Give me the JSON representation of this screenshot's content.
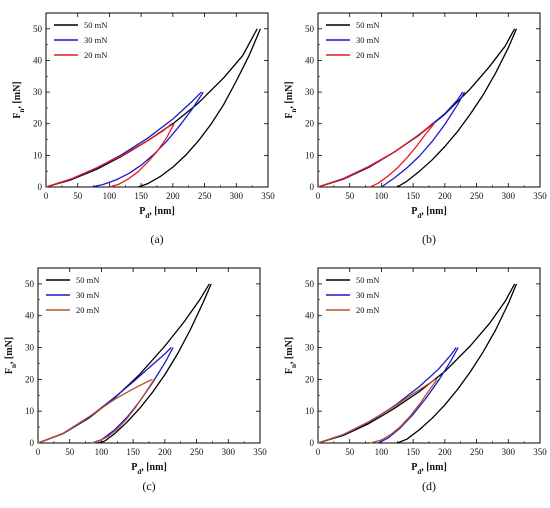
{
  "chart_data": [
    {
      "type": "line",
      "panel_label": "(a)",
      "xlabel": "P_d, [nm]",
      "ylabel": "F_n, [mN]",
      "xlim": [
        0,
        350
      ],
      "ylim": [
        0,
        55
      ],
      "xticks": [
        0,
        50,
        100,
        150,
        200,
        250,
        300,
        350
      ],
      "yticks": [
        0,
        10,
        20,
        30,
        40,
        50
      ],
      "legend_position": "top-left",
      "series": [
        {
          "name": "50 mN",
          "color": "#000000",
          "loading": {
            "x": [
              0,
              40,
              80,
              120,
              160,
              200,
              240,
              280,
              310,
              333
            ],
            "y": [
              0,
              2.3,
              5.6,
              9.8,
              14.6,
              20.0,
              26.5,
              34.5,
              41.5,
              50
            ]
          },
          "unloading": {
            "x": [
              338,
              320,
              300,
              280,
              260,
              240,
              220,
              200,
              180,
              160,
              145
            ],
            "y": [
              50,
              41.5,
              33.5,
              26,
              19.8,
              14.5,
              10,
              6.3,
              3.3,
              1.0,
              0
            ]
          }
        },
        {
          "name": "30 mN",
          "color": "#1a1acc",
          "loading": {
            "x": [
              0,
              40,
              80,
              120,
              160,
              200,
              230,
              245
            ],
            "y": [
              0,
              2.5,
              6.0,
              10.3,
              15.4,
              21.5,
              27.0,
              30
            ]
          },
          "unloading": {
            "x": [
              248,
              230,
              210,
              190,
              170,
              150,
              130,
              110,
              90,
              72
            ],
            "y": [
              30,
              24.5,
              19.2,
              14.4,
              10.3,
              6.9,
              4.2,
              2.2,
              0.8,
              0
            ]
          }
        },
        {
          "name": "20 mN",
          "color": "#e81c1c",
          "loading": {
            "x": [
              0,
              40,
              80,
              120,
              160,
              185,
              198
            ],
            "y": [
              0,
              2.6,
              6.1,
              10.0,
              14.6,
              17.8,
              20
            ]
          },
          "unloading": {
            "x": [
              202,
              190,
              175,
              160,
              145,
              130,
              115,
              100
            ],
            "y": [
              20,
              15.5,
              11.2,
              7.8,
              4.8,
              2.6,
              0.9,
              0
            ]
          }
        }
      ]
    },
    {
      "type": "line",
      "panel_label": "(b)",
      "xlabel": "P_d, [nm]",
      "ylabel": "F_n, [mN]",
      "xlim": [
        0,
        350
      ],
      "ylim": [
        0,
        55
      ],
      "xticks": [
        0,
        50,
        100,
        150,
        200,
        250,
        300,
        350
      ],
      "yticks": [
        0,
        10,
        20,
        30,
        40,
        50
      ],
      "legend_position": "top-left",
      "series": [
        {
          "name": "50 mN",
          "color": "#000000",
          "loading": {
            "x": [
              0,
              40,
              80,
              120,
              160,
              200,
              240,
              270,
              295,
              310
            ],
            "y": [
              0,
              2.5,
              6.2,
              11.0,
              16.5,
              23.0,
              31.0,
              38.0,
              44.5,
              50
            ]
          },
          "unloading": {
            "x": [
              313,
              300,
              280,
              260,
              240,
              220,
              200,
              180,
              160,
              140,
              125
            ],
            "y": [
              50,
              44,
              36,
              29,
              23,
              17.5,
              12.8,
              8.6,
              5.0,
              1.8,
              0
            ]
          }
        },
        {
          "name": "30 mN",
          "color": "#1a1acc",
          "loading": {
            "x": [
              0,
              40,
              80,
              120,
              160,
              200,
              220,
              228
            ],
            "y": [
              0,
              2.6,
              6.3,
              11.0,
              16.6,
              23.2,
              27.5,
              30
            ]
          },
          "unloading": {
            "x": [
              231,
              220,
              200,
              180,
              160,
              140,
              120,
              100
            ],
            "y": [
              30,
              26,
              19.8,
              14.4,
              9.8,
              6.0,
              2.8,
              0
            ]
          }
        },
        {
          "name": "20 mN",
          "color": "#e81c1c",
          "loading": {
            "x": [
              0,
              40,
              80,
              120,
              150,
              170,
              180
            ],
            "y": [
              0,
              2.7,
              6.5,
              11.0,
              15.2,
              18.2,
              20
            ]
          },
          "unloading": {
            "x": [
              183,
              170,
              155,
              140,
              125,
              110,
              95,
              82
            ],
            "y": [
              20,
              16.8,
              12.8,
              9.2,
              6.0,
              3.4,
              1.2,
              0
            ]
          }
        }
      ]
    },
    {
      "type": "line",
      "panel_label": "(c)",
      "xlabel": "P_d, [nm]",
      "ylabel": "F_n, [mN]",
      "xlim": [
        0,
        350
      ],
      "ylim": [
        0,
        55
      ],
      "xticks": [
        0,
        50,
        100,
        150,
        200,
        250,
        300,
        350
      ],
      "yticks": [
        0,
        10,
        20,
        30,
        40,
        50
      ],
      "legend_position": "top-left",
      "series": [
        {
          "name": "50 mN",
          "color": "#000000",
          "loading": {
            "x": [
              0,
              40,
              80,
              120,
              160,
              200,
              230,
              255,
              270
            ],
            "y": [
              0,
              3.0,
              7.8,
              14.0,
              21.5,
              30.5,
              38.0,
              45.0,
              50
            ]
          },
          "unloading": {
            "x": [
              273,
              260,
              240,
              220,
              200,
              180,
              160,
              140,
              120,
              105,
              95
            ],
            "y": [
              50,
              44,
              35.5,
              28,
              21.5,
              15.8,
              10.8,
              6.5,
              2.8,
              0.6,
              0
            ]
          }
        },
        {
          "name": "30 mN",
          "color": "#1a1acc",
          "loading": {
            "x": [
              0,
              40,
              80,
              120,
              150,
              180,
              200,
              210
            ],
            "y": [
              0,
              3.0,
              8.0,
              14.2,
              19.2,
              24.5,
              28.0,
              30
            ]
          },
          "unloading": {
            "x": [
              213,
              200,
              180,
              160,
              140,
              120,
              100,
              85
            ],
            "y": [
              30,
              25.2,
              18.8,
              13.0,
              8.0,
              4.0,
              1.0,
              0
            ]
          }
        },
        {
          "name": "20 mN",
          "color": "#b5532d",
          "loading": {
            "x": [
              0,
              40,
              80,
              120,
              150,
              170,
              180
            ],
            "y": [
              0,
              3.1,
              8.2,
              13.6,
              17.0,
              19.0,
              20
            ]
          },
          "unloading": {
            "x": [
              183,
              170,
              155,
              140,
              125,
              110,
              95,
              85
            ],
            "y": [
              20,
              16.0,
              11.5,
              7.6,
              4.4,
              2.0,
              0.5,
              0
            ]
          }
        }
      ]
    },
    {
      "type": "line",
      "panel_label": "(d)",
      "xlabel": "P_d, [nm]",
      "ylabel": "F_n, [mN]",
      "xlim": [
        0,
        350
      ],
      "ylim": [
        0,
        55
      ],
      "xticks": [
        0,
        50,
        100,
        150,
        200,
        250,
        300,
        350
      ],
      "yticks": [
        0,
        10,
        20,
        30,
        40,
        50
      ],
      "legend_position": "top-left",
      "series": [
        {
          "name": "50 mN",
          "color": "#000000",
          "loading": {
            "x": [
              0,
              40,
              80,
              120,
              160,
              200,
              240,
              270,
              295,
              310
            ],
            "y": [
              0,
              2.4,
              6.1,
              10.8,
              16.2,
              22.5,
              30.5,
              37.5,
              44.5,
              50
            ]
          },
          "unloading": {
            "x": [
              313,
              300,
              280,
              260,
              240,
              220,
              200,
              180,
              160,
              140,
              125
            ],
            "y": [
              50,
              43.8,
              35.5,
              28.5,
              22.3,
              16.8,
              12.0,
              7.8,
              4.2,
              1.2,
              0
            ]
          }
        },
        {
          "name": "30 mN",
          "color": "#1a1acc",
          "loading": {
            "x": [
              0,
              40,
              80,
              120,
              160,
              190,
              210,
              218
            ],
            "y": [
              0,
              2.6,
              6.5,
              11.6,
              17.8,
              23.2,
              27.8,
              30
            ]
          },
          "unloading": {
            "x": [
              221,
              210,
              190,
              170,
              150,
              130,
              110,
              95
            ],
            "y": [
              30,
              26.0,
              19.6,
              14.0,
              9.0,
              4.8,
              1.5,
              0
            ]
          }
        },
        {
          "name": "20 mN",
          "color": "#b5532d",
          "loading": {
            "x": [
              0,
              40,
              80,
              120,
              150,
              170,
              185
            ],
            "y": [
              0,
              2.7,
              6.7,
              11.4,
              15.5,
              18.0,
              20
            ]
          },
          "unloading": {
            "x": [
              188,
              175,
              160,
              145,
              130,
              115,
              100,
              82
            ],
            "y": [
              20,
              16.5,
              12.2,
              8.4,
              5.2,
              2.7,
              0.9,
              0
            ]
          }
        }
      ]
    }
  ]
}
